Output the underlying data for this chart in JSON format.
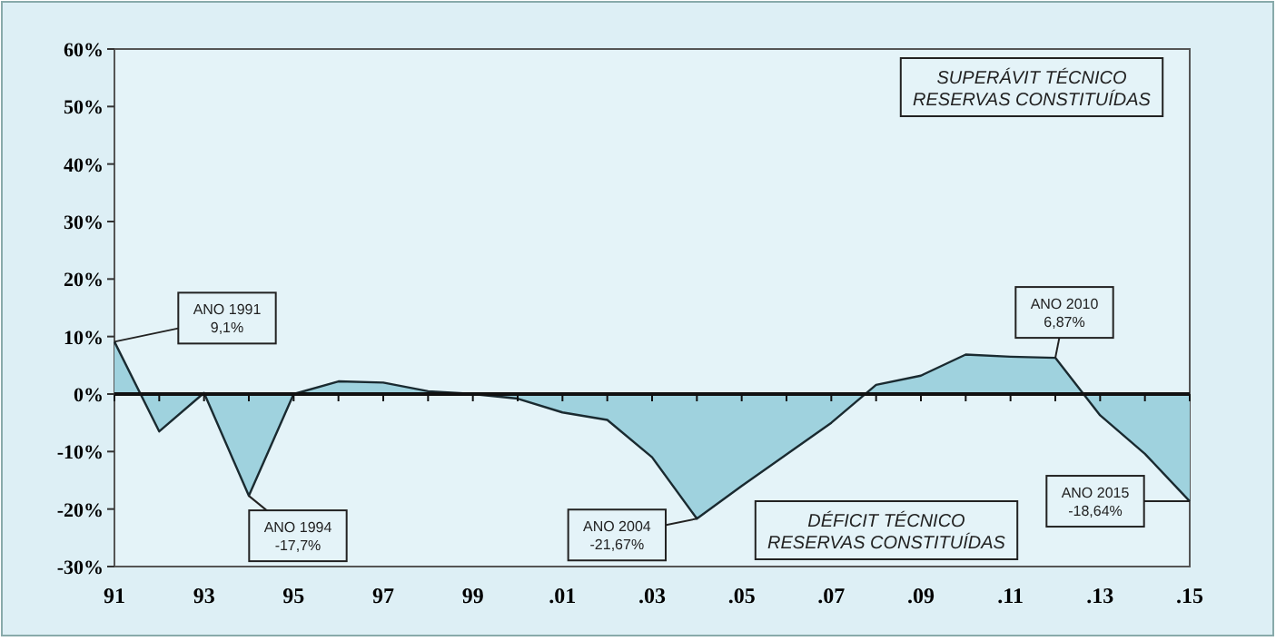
{
  "chart_data": {
    "type": "area",
    "categories": [
      "91",
      null,
      "93",
      null,
      "95",
      null,
      "97",
      null,
      "99",
      null,
      ".01",
      null,
      ".03",
      null,
      ".05",
      null,
      ".07",
      null,
      ".09",
      null,
      ".11",
      null,
      ".13",
      null,
      ".15"
    ],
    "series": [
      {
        "color": "#9fd2de",
        "values": [
          9.1,
          -6.5,
          0.2,
          -17.7,
          0,
          2.2,
          2.0,
          0.5,
          0,
          -0.8,
          -3.2,
          -4.5,
          -11,
          -21.67,
          -16,
          -10.5,
          -5,
          1.6,
          3.2,
          6.87,
          6.5,
          6.3,
          -3.7,
          -10.4,
          -18.64
        ]
      }
    ],
    "ylim": [
      -30,
      60
    ],
    "yticks": [
      {
        "value": -30,
        "label": "-30%"
      },
      {
        "value": -20,
        "label": "-20%"
      },
      {
        "value": -10,
        "label": "-10%"
      },
      {
        "value": 0,
        "label": "0%"
      },
      {
        "value": 10,
        "label": "10%"
      },
      {
        "value": 20,
        "label": "20%"
      },
      {
        "value": 30,
        "label": "30%"
      },
      {
        "value": 40,
        "label": "40%"
      },
      {
        "value": 50,
        "label": "50%"
      },
      {
        "value": 60,
        "label": "60%"
      }
    ],
    "annotations": [
      {
        "text": "ANO 1991\n9,1%",
        "x": "91",
        "y": 9.1
      },
      "ANO 1994\n-17,7%",
      "ANO 2004\n-21,67%",
      "ANO 2010\n6,87%",
      {
        "text": "ANO 2015\n-18,64%",
        "x": ".15",
        "y": -18.64
      },
      "SUPERÁVIT TÉCNICO\nRESERVAS CONSTITUÍDAS",
      "DÉFICIT TÉCNICO\nRESERVAS CONSTITUÍDAS"
    ]
  }
}
